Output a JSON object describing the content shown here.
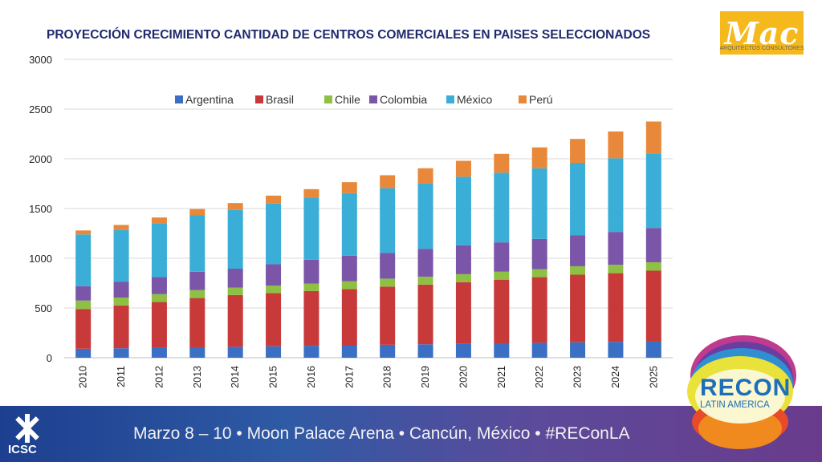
{
  "logo": {
    "text": "Mac",
    "subtitle": "ARQUITECTOS CONSULTORES"
  },
  "footer": {
    "text": "Marzo 8 – 10 • Moon Palace Arena • Cancún, México • #REConLA",
    "org": "ICSC"
  },
  "badge": {
    "title": "RECON",
    "subtitle": "LATIN AMERICA"
  },
  "chart_data": {
    "type": "bar",
    "stacked": true,
    "title": "PROYECCIÓN CRECIMIENTO CANTIDAD DE CENTROS COMERCIALES  EN PAISES SELECCIONADOS",
    "categories": [
      "2010",
      "2011",
      "2012",
      "2013",
      "2014",
      "2015",
      "2016",
      "2017",
      "2018",
      "2019",
      "2020",
      "2021",
      "2022",
      "2023",
      "2024",
      "2025"
    ],
    "ylim": [
      0,
      3000
    ],
    "yticks": [
      0,
      500,
      1000,
      1500,
      2000,
      2500,
      3000
    ],
    "grid": true,
    "legend_position": "top-center",
    "series": [
      {
        "name": "Argentina",
        "color": "#3a6fc4",
        "values": [
          90,
          95,
          100,
          105,
          110,
          115,
          120,
          125,
          130,
          135,
          140,
          145,
          150,
          155,
          160,
          165
        ]
      },
      {
        "name": "Brasil",
        "color": "#c83a3a",
        "values": [
          400,
          430,
          460,
          495,
          520,
          535,
          550,
          565,
          585,
          600,
          620,
          640,
          660,
          680,
          690,
          710
        ]
      },
      {
        "name": "Chile",
        "color": "#8ec043",
        "values": [
          85,
          80,
          80,
          80,
          75,
          75,
          75,
          80,
          80,
          80,
          80,
          80,
          80,
          85,
          85,
          85
        ]
      },
      {
        "name": "Colombia",
        "color": "#7a55a8",
        "values": [
          145,
          160,
          170,
          185,
          190,
          215,
          240,
          255,
          260,
          280,
          290,
          295,
          305,
          310,
          330,
          345
        ]
      },
      {
        "name": "México",
        "color": "#3aaed6",
        "values": [
          520,
          520,
          540,
          570,
          590,
          610,
          620,
          630,
          650,
          660,
          690,
          700,
          710,
          730,
          740,
          750
        ]
      },
      {
        "name": "Perú",
        "color": "#e8883a",
        "values": [
          40,
          50,
          60,
          60,
          70,
          80,
          90,
          110,
          130,
          150,
          160,
          190,
          210,
          240,
          270,
          320
        ]
      }
    ]
  }
}
